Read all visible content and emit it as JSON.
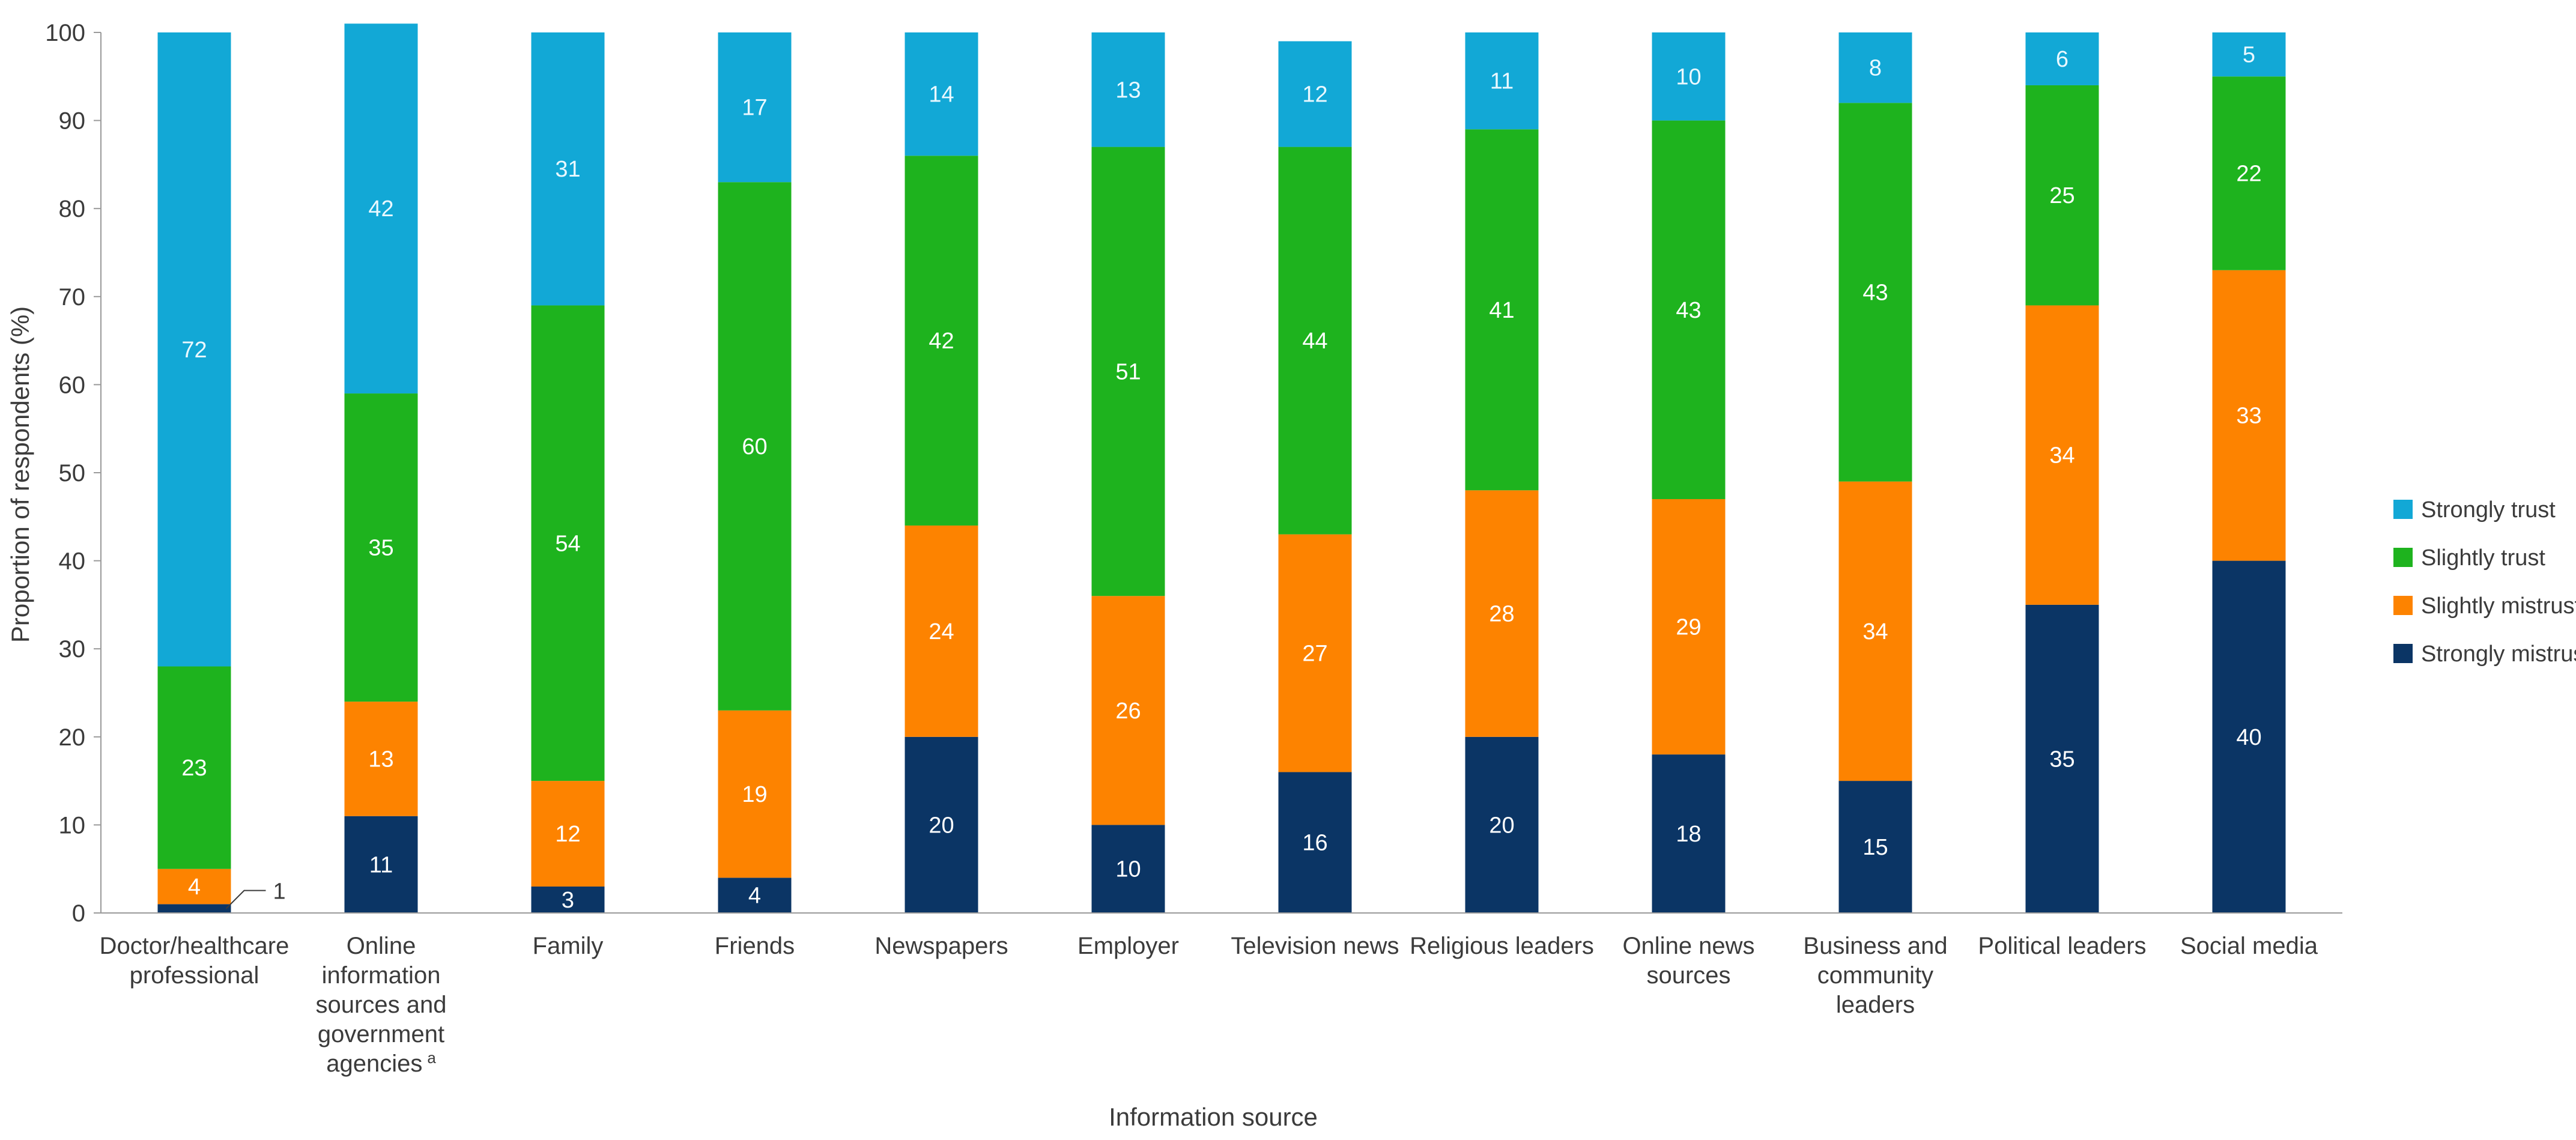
{
  "chart_data": {
    "type": "bar",
    "stacked": true,
    "title": "",
    "xlabel": "Information source",
    "ylabel": "Proportion of respondents (%)",
    "ylim": [
      0,
      100
    ],
    "yticks": [
      0,
      10,
      20,
      30,
      40,
      50,
      60,
      70,
      80,
      90,
      100
    ],
    "grid": false,
    "legend_position": "right",
    "categories": [
      [
        "Doctor/healthcare",
        "professional"
      ],
      [
        "Online",
        "information",
        "sources and",
        "government",
        "agencies"
      ],
      [
        "Family"
      ],
      [
        "Friends"
      ],
      [
        "Newspapers"
      ],
      [
        "Employer"
      ],
      [
        "Television news"
      ],
      [
        "Religious leaders"
      ],
      [
        "Online news",
        "sources"
      ],
      [
        "Business and",
        "community",
        "leaders"
      ],
      [
        "Political leaders"
      ],
      [
        "Social media"
      ]
    ],
    "category_footnote": {
      "index": 1,
      "mark": "a"
    },
    "series": [
      {
        "name": "Strongly mistrust",
        "color": "#0b3565",
        "label_color": "#ffffff",
        "values": [
          1,
          11,
          3,
          4,
          20,
          10,
          16,
          20,
          18,
          15,
          35,
          40
        ]
      },
      {
        "name": "Slightly mistrust",
        "color": "#fd8300",
        "label_color": "#ffffff",
        "values": [
          4,
          13,
          12,
          19,
          24,
          26,
          27,
          28,
          29,
          34,
          34,
          33
        ]
      },
      {
        "name": "Slightly trust",
        "color": "#1eb31e",
        "label_color": "#ffffff",
        "values": [
          23,
          35,
          54,
          60,
          42,
          51,
          44,
          41,
          43,
          43,
          25,
          22
        ]
      },
      {
        "name": "Strongly trust",
        "color": "#12a8d6",
        "label_color": "#e9f8ff",
        "values": [
          72,
          42,
          31,
          17,
          14,
          13,
          12,
          11,
          10,
          8,
          6,
          5
        ]
      }
    ],
    "annotations": [
      {
        "category_index": 0,
        "series": "Strongly mistrust",
        "text": "1",
        "callout": true
      }
    ]
  }
}
